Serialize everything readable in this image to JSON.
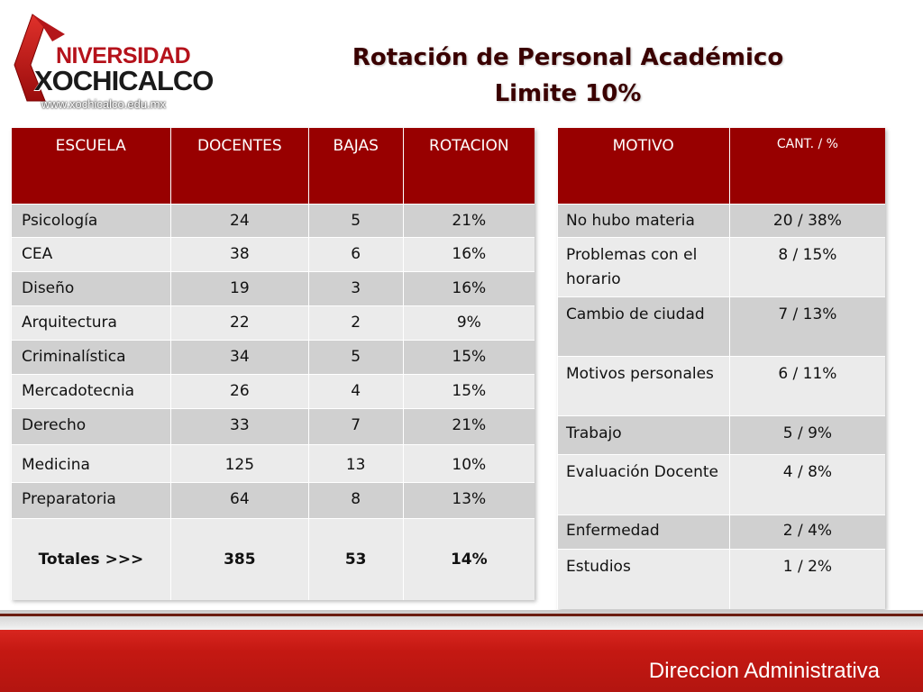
{
  "logo": {
    "top_text": "NIVERSIDAD",
    "bottom_text": "XOCHICALCO",
    "url": "www.xochicalco.edu.mx"
  },
  "title": {
    "line1": "Rotación de Personal Académico",
    "line2": "Limite 10%"
  },
  "schools_table": {
    "headers": [
      "ESCUELA",
      "DOCENTES",
      "BAJAS",
      "ROTACION"
    ],
    "rows": [
      [
        "Psicología",
        "24",
        "5",
        "21%"
      ],
      [
        "CEA",
        "38",
        "6",
        "16%"
      ],
      [
        "Diseño",
        "19",
        "3",
        "16%"
      ],
      [
        "Arquitectura",
        "22",
        "2",
        "9%"
      ],
      [
        "Criminalística",
        "34",
        "5",
        "15%"
      ],
      [
        "Mercadotecnia",
        "26",
        "4",
        "15%"
      ],
      [
        "Derecho",
        "33",
        "7",
        "21%"
      ],
      [
        "Medicina",
        "125",
        "13",
        "10%"
      ],
      [
        "Preparatoria",
        "64",
        "8",
        "13%"
      ]
    ],
    "totals": [
      "Totales >>>",
      "385",
      "53",
      "14%"
    ]
  },
  "reasons_table": {
    "headers": [
      "MOTIVO",
      "CANT. / %"
    ],
    "rows": [
      [
        "No hubo materia",
        "20 / 38%"
      ],
      [
        "Problemas con el horario",
        "8 / 15%"
      ],
      [
        "Cambio de  ciudad",
        "7 / 13%"
      ],
      [
        "Motivos personales",
        "6 / 11%"
      ],
      [
        "Trabajo",
        "5 / 9%"
      ],
      [
        "Evaluación Docente",
        "4 / 8%"
      ],
      [
        "Enfermedad",
        "2 / 4%"
      ],
      [
        "Estudios",
        "1 / 2%"
      ]
    ]
  },
  "footer": {
    "text": "Direccion Administrativa"
  },
  "colors": {
    "header_red": "#980000",
    "row_dark": "#d0d0d0",
    "row_light": "#ebebeb",
    "footer_red": "#c41812"
  }
}
